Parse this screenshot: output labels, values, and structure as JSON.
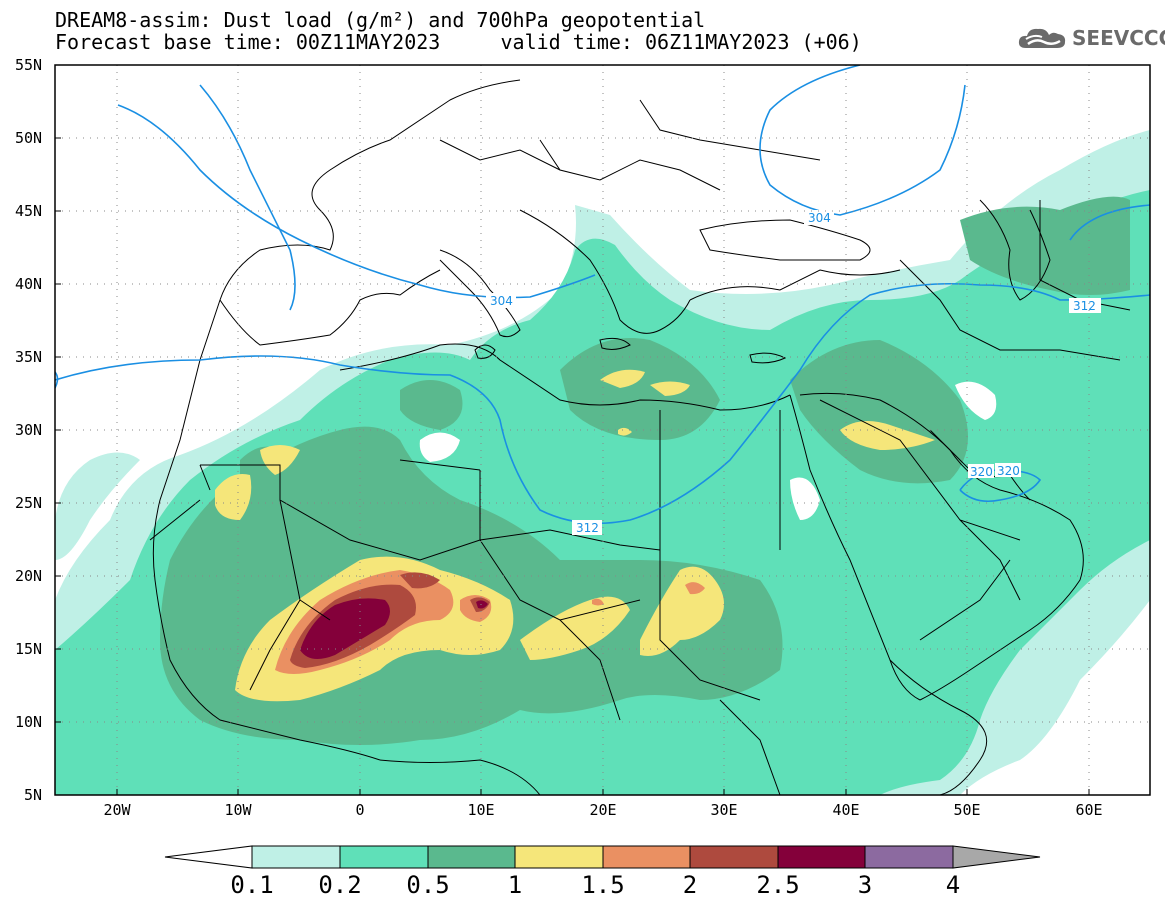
{
  "title": {
    "line1": "DREAM8-assim: Dust load (g/m²) and 700hPa geopotential",
    "line2": "Forecast base time: 00Z11MAY2023     valid time: 06Z11MAY2023 (+06)"
  },
  "logo": {
    "text": "SEEVCCC",
    "icon": "cloud-icon"
  },
  "axes": {
    "lat_labels": [
      "55N",
      "50N",
      "45N",
      "40N",
      "35N",
      "30N",
      "25N",
      "20N",
      "15N",
      "10N",
      "5N"
    ],
    "lon_labels": [
      "20W",
      "10W",
      "0",
      "10E",
      "20E",
      "30E",
      "40E",
      "50E",
      "60E"
    ]
  },
  "contours": {
    "labels": [
      "304",
      "304",
      "312",
      "312",
      "320",
      "320"
    ],
    "color": "#1a8fe3"
  },
  "colorbar": {
    "labels": [
      "0.1",
      "0.2",
      "0.5",
      "1",
      "1.5",
      "2",
      "2.5",
      "3",
      "4"
    ],
    "colors": [
      "#ffffff",
      "#bff0e6",
      "#5fe0b8",
      "#5ab98e",
      "#f5e67a",
      "#ea9062",
      "#ae4a3e",
      "#84003a",
      "#8c6aa0",
      "#a8a8a8"
    ]
  },
  "colors": {
    "lvl1": "#bff0e6",
    "lvl2": "#5fe0b8",
    "lvl3": "#5ab98e",
    "lvl4": "#f5e67a",
    "lvl5": "#ea9062",
    "lvl6": "#ae4a3e",
    "lvl7": "#84003a",
    "coast": "#000000",
    "contour": "#1a8fe3"
  }
}
